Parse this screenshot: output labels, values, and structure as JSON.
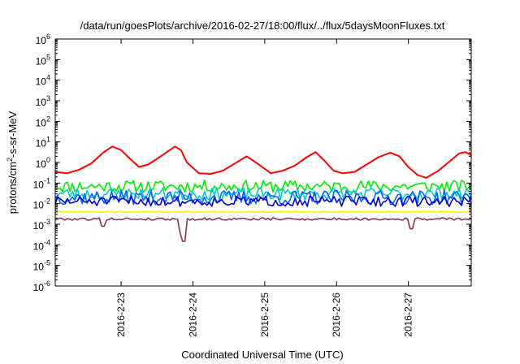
{
  "chart_data": {
    "type": "line",
    "title": "/data/run/goesPlots/archive/2016-02-27/18:00/flux/../flux/5daysMoonFluxes.txt",
    "xlabel": "Coordinated Universal Time (UTC)",
    "ylabel": {
      "base": "protons/cm",
      "sup": "2",
      "rest": "-s-sr-MeV"
    },
    "yscale": "log",
    "ylim_exponents": [
      -6,
      6
    ],
    "xlim_days": [
      "2016-02-22T02:00",
      "2016-02-27T21:00"
    ],
    "x_ticks": [
      {
        "date": "2016-02-23",
        "label": "2016-2-23"
      },
      {
        "date": "2016-02-24",
        "label": "2016-2-24"
      },
      {
        "date": "2016-02-25",
        "label": "2016-2-25"
      },
      {
        "date": "2016-02-26",
        "label": "2016-2-26"
      },
      {
        "date": "2016-02-27",
        "label": "2016-2-27"
      }
    ],
    "y_ticks": [
      {
        "base": "10",
        "exp": "-6"
      },
      {
        "base": "10",
        "exp": "-5"
      },
      {
        "base": "10",
        "exp": "-4"
      },
      {
        "base": "10",
        "exp": "-3"
      },
      {
        "base": "10",
        "exp": "-2"
      },
      {
        "base": "10",
        "exp": "-1"
      },
      {
        "base": "10",
        "exp": "0"
      },
      {
        "base": "10",
        "exp": "1"
      },
      {
        "base": "10",
        "exp": "2"
      },
      {
        "base": "10",
        "exp": "3"
      },
      {
        "base": "10",
        "exp": "4"
      },
      {
        "base": "10",
        "exp": "5"
      },
      {
        "base": "10",
        "exp": "6"
      }
    ],
    "grid": false,
    "series": [
      {
        "color": "#ff0000",
        "x": [
          "2016-02-22T02:00",
          "2016-02-22T06:00",
          "2016-02-22T10:00",
          "2016-02-22T14:00",
          "2016-02-22T18:00",
          "2016-02-22T21:00",
          "2016-02-23T00:00",
          "2016-02-23T03:00",
          "2016-02-23T06:00",
          "2016-02-23T09:00",
          "2016-02-23T12:00",
          "2016-02-23T15:00",
          "2016-02-23T18:00",
          "2016-02-23T20:00",
          "2016-02-23T22:00",
          "2016-02-24T02:00",
          "2016-02-24T06:00",
          "2016-02-24T10:00",
          "2016-02-24T14:00",
          "2016-02-24T18:00",
          "2016-02-24T22:00",
          "2016-02-25T02:00",
          "2016-02-25T06:00",
          "2016-02-25T10:00",
          "2016-02-25T14:00",
          "2016-02-25T17:00",
          "2016-02-25T20:00",
          "2016-02-25T23:00",
          "2016-02-26T02:00",
          "2016-02-26T06:00",
          "2016-02-26T10:00",
          "2016-02-26T14:00",
          "2016-02-26T18:00",
          "2016-02-26T21:00",
          "2016-02-27T00:00",
          "2016-02-27T03:00",
          "2016-02-27T06:00",
          "2016-02-27T10:00",
          "2016-02-27T14:00",
          "2016-02-27T17:00",
          "2016-02-27T19:00",
          "2016-02-27T21:00"
        ],
        "y": [
          0.35,
          0.3,
          0.45,
          0.9,
          3.0,
          6.0,
          4.0,
          1.5,
          0.6,
          0.8,
          1.5,
          3.0,
          6.0,
          4.0,
          1.0,
          0.3,
          0.28,
          0.4,
          0.9,
          2.0,
          0.8,
          0.3,
          0.4,
          0.7,
          1.8,
          3.2,
          1.2,
          0.4,
          0.3,
          0.35,
          0.8,
          1.8,
          3.0,
          2.0,
          0.6,
          0.25,
          0.18,
          0.4,
          1.2,
          2.8,
          3.2,
          2.3
        ]
      },
      {
        "color": "#00ee00",
        "base": 0.07,
        "amp": 0.6,
        "seed": 11
      },
      {
        "color": "#00cccc",
        "base": 0.03,
        "amp": 0.6,
        "seed": 23
      },
      {
        "color": "#0066ff",
        "base": 0.02,
        "amp": 0.7,
        "seed": 37
      },
      {
        "color": "#0000dd",
        "base": 0.013,
        "amp": 0.5,
        "seed": 51
      },
      {
        "color": "#ffee00",
        "base": 0.004,
        "amp": 0.05,
        "seed": 63
      },
      {
        "color": "#883355",
        "base": 0.0018,
        "amp": 0.12,
        "seed": 79,
        "dips": [
          {
            "x": "2016-02-22T18:00",
            "y": 0.0008
          },
          {
            "x": "2016-02-23T20:00",
            "y": 0.0004
          },
          {
            "x": "2016-02-23T21:00",
            "y": 0.00015
          },
          {
            "x": "2016-02-27T01:00",
            "y": 0.0006
          }
        ]
      }
    ]
  }
}
